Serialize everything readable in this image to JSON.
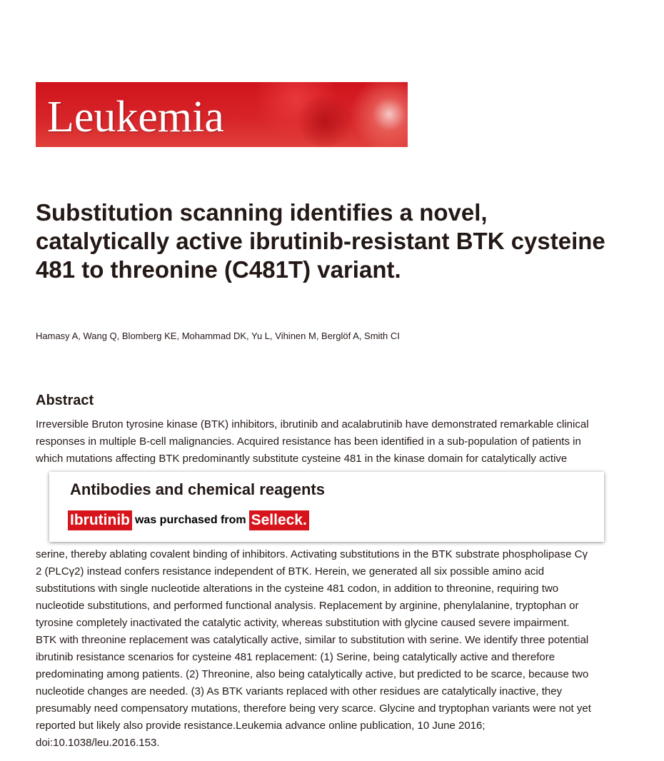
{
  "journal": {
    "logo_text": "Leukemia"
  },
  "article": {
    "title": "Substitution scanning identifies a novel, catalytically active ibrutinib-resistant BTK cysteine 481 to threonine (C481T) variant.",
    "authors": "Hamasy A, Wang Q, Blomberg KE, Mohammad DK, Yu L, Vihinen M, Berglöf A, Smith CI",
    "abstract_heading": "Abstract",
    "abstract_lines": [
      "Irreversible Bruton tyrosine kinase (BTK) inhibitors, ibrutinib and acalabrutinib have demonstrated remarkable clinical",
      "responses in multiple B-cell malignancies. Acquired resistance has been identified in a sub-population of patients in",
      "which mutations affecting BTK predominantly substitute cysteine 481 in the kinase domain for catalytically active",
      "serine, thereby ablating covalent binding of inhibitors. Activating substitutions in the BTK substrate phospholipase Cγ",
      "2 (PLCγ2) instead confers resistance independent of BTK. Herein, we generated all six possible amino acid",
      "substitutions with single nucleotide alterations in the cysteine 481 codon, in addition to threonine, requiring two",
      "nucleotide substitutions, and performed functional analysis. Replacement by arginine, phenylalanine, tryptophan or",
      "tyrosine completely inactivated the catalytic activity, whereas substitution with glycine caused severe impairment.",
      "BTK with threonine replacement was catalytically active, similar to substitution with serine. We identify three potential",
      "ibrutinib resistance scenarios for cysteine 481 replacement: (1) Serine, being catalytically active and therefore",
      "predominating among patients. (2) Threonine, also being catalytically active, but predicted to be scarce, because two",
      "nucleotide changes are needed. (3) As BTK variants replaced with other residues are catalytically inactive, they",
      "presumably need compensatory mutations, therefore being very scarce. Glycine and tryptophan variants were not yet",
      "reported but likely also provide resistance.Leukemia advance online publication, 10 June 2016;",
      "doi:10.1038/leu.2016.153."
    ]
  },
  "overlay": {
    "title": "Antibodies and chemical reagents",
    "product": "Ibrutinib",
    "middle_text": "was purchased from",
    "vendor": "Selleck.",
    "accent_color": "#d7141b"
  }
}
